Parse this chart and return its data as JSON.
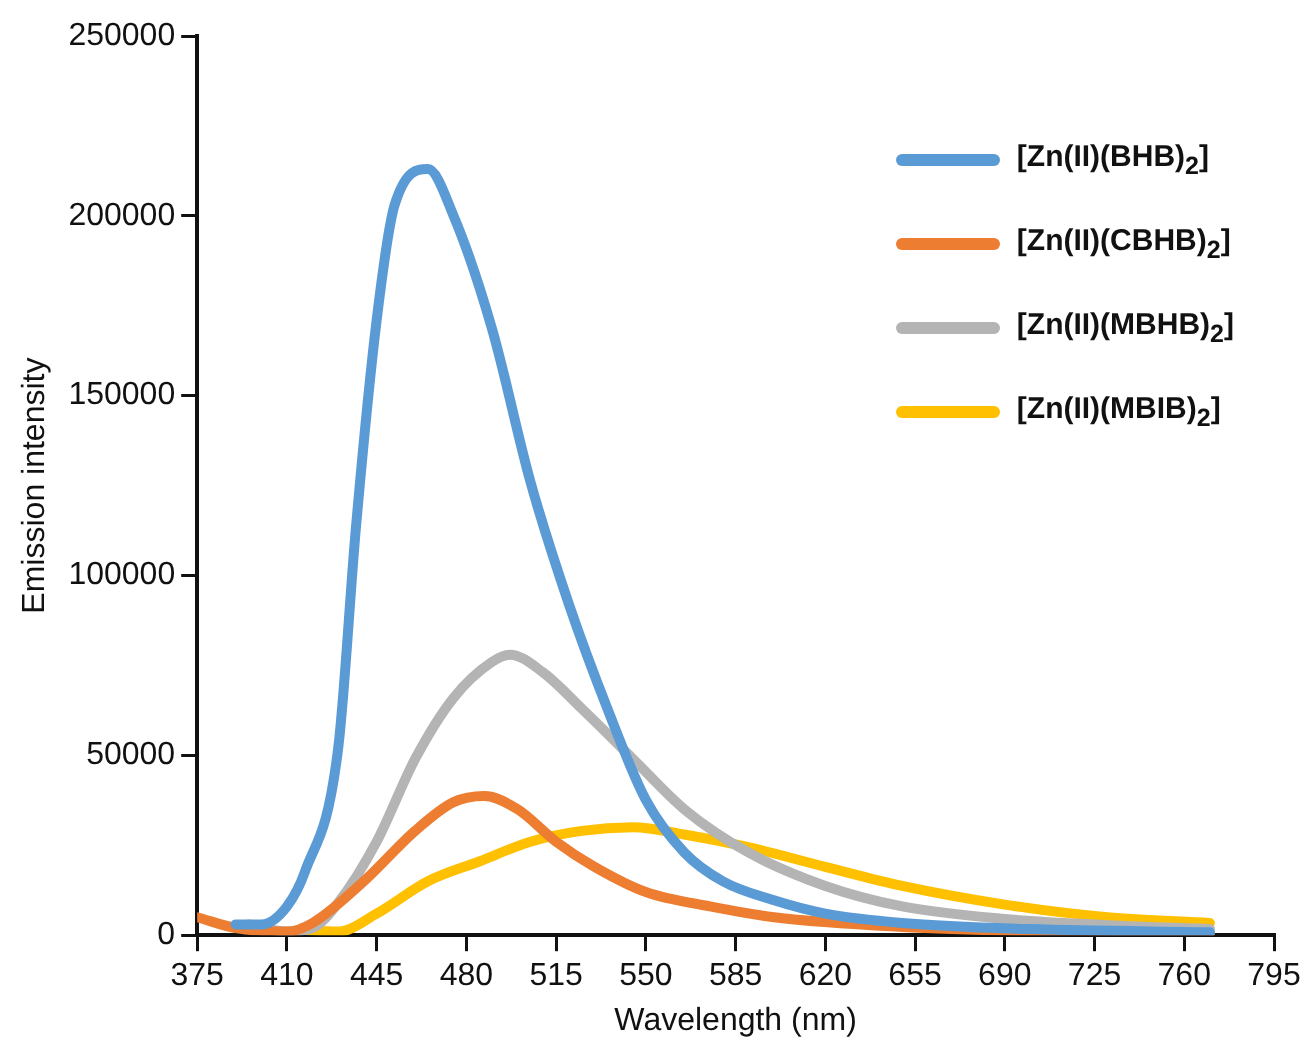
{
  "chart_data": {
    "type": "line",
    "xlabel": "Wavelength (nm)",
    "ylabel": "Emission intensity",
    "xlim": [
      375,
      795
    ],
    "xticks": [
      375,
      410,
      445,
      480,
      515,
      550,
      585,
      620,
      655,
      690,
      725,
      760,
      795
    ],
    "ylim": [
      0,
      250000
    ],
    "yticks": [
      0,
      50000,
      100000,
      150000,
      200000,
      250000
    ],
    "grid": false,
    "legend": "top right",
    "marker": "none",
    "line_style": "solid",
    "series": [
      {
        "name": "[Zn(II)(BHB)$_{2}$]",
        "color": "#5b9bd5",
        "x": [
          390,
          400,
          410,
          417,
          430,
          437,
          445,
          452,
          465,
          475,
          490,
          505,
          520,
          535,
          550,
          565,
          580,
          600,
          620,
          650,
          700,
          770
        ],
        "values": [
          3000,
          3000,
          8000,
          17600,
          52000,
          114000,
          171000,
          203000,
          213000,
          200000,
          168600,
          126000,
          92000,
          63000,
          37600,
          23000,
          15000,
          9700,
          6000,
          3400,
          1700,
          800
        ]
      },
      {
        "name": "[Zn(II)(CBHB)$_{2}$]",
        "color": "#ed7d31",
        "x": [
          375,
          390,
          410,
          420,
          440,
          460,
          475,
          487,
          500,
          515,
          530,
          550,
          575,
          600,
          650,
          700,
          770
        ],
        "values": [
          5000,
          2000,
          1000,
          3400,
          15000,
          29000,
          37000,
          38700,
          35000,
          26000,
          19000,
          12000,
          8000,
          5000,
          2300,
          1100,
          500
        ]
      },
      {
        "name": "[Zn(II)(MBHB)$_{2}$]",
        "color": "#b4b4b4",
        "x": [
          395,
          410,
          420,
          430,
          445,
          460,
          475,
          490,
          497,
          510,
          525,
          545,
          565,
          590,
          620,
          650,
          690,
          730,
          770
        ],
        "values": [
          3000,
          1000,
          2000,
          9000,
          26000,
          49000,
          66000,
          76000,
          78000,
          73000,
          63000,
          49000,
          35000,
          23000,
          13700,
          8000,
          4500,
          2800,
          1700
        ]
      },
      {
        "name": "[Zn(II)(MBIB)$_{2}$]",
        "color": "#ffc000",
        "x": [
          415,
          430,
          445,
          465,
          485,
          505,
          525,
          545,
          565,
          590,
          620,
          650,
          690,
          730,
          770
        ],
        "values": [
          1500,
          1000,
          6000,
          15000,
          20500,
          26000,
          29000,
          30000,
          28000,
          24500,
          19000,
          13700,
          8500,
          5000,
          3400
        ]
      }
    ]
  }
}
